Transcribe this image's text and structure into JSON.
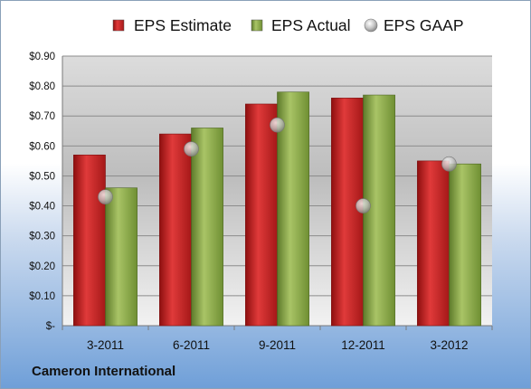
{
  "chart_data": {
    "type": "bar",
    "categories": [
      "3-2011",
      "6-2011",
      "9-2011",
      "12-2011",
      "3-2012"
    ],
    "series": [
      {
        "name": "EPS Estimate",
        "kind": "bar",
        "color": "#cc2222",
        "values": [
          0.57,
          0.64,
          0.74,
          0.76,
          0.55
        ]
      },
      {
        "name": "EPS Actual",
        "kind": "bar",
        "color": "#8db04a",
        "values": [
          0.46,
          0.66,
          0.78,
          0.77,
          0.54
        ]
      },
      {
        "name": "EPS GAAP",
        "kind": "marker",
        "color": "#c8c8c8",
        "values": [
          0.43,
          0.59,
          0.67,
          0.4,
          0.54
        ]
      }
    ],
    "ylim": [
      0,
      0.9
    ],
    "yticks": [
      0,
      0.1,
      0.2,
      0.3,
      0.4,
      0.5,
      0.6,
      0.7,
      0.8,
      0.9
    ],
    "ytick_labels": [
      "$-",
      "$0.10",
      "$0.20",
      "$0.30",
      "$0.40",
      "$0.50",
      "$0.60",
      "$0.70",
      "$0.80",
      "$0.90"
    ],
    "legend_position": "top",
    "grid": true
  },
  "footer": {
    "company": "Cameron International"
  }
}
